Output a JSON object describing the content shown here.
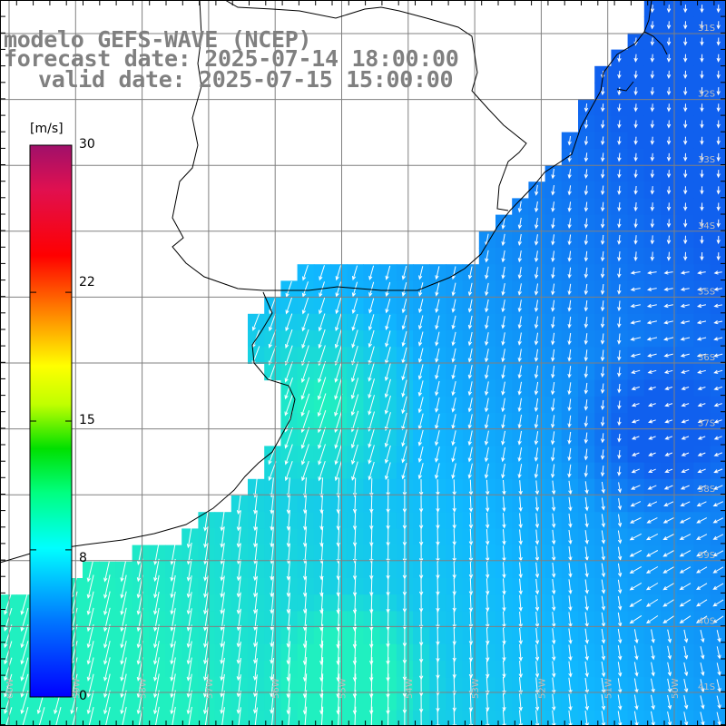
{
  "title": {
    "line1": "modelo GEFS-WAVE (NCEP)",
    "line2": "forecast date: 2025-07-14 18:00:00",
    "line3": "valid date: 2025-07-15 15:00:00"
  },
  "colorbar": {
    "unit": "[m/s]",
    "ticks": [
      "30",
      "22",
      "15",
      "8",
      "0"
    ],
    "tick_values": [
      30,
      22,
      15,
      8,
      0
    ],
    "range": [
      0,
      30
    ],
    "colors": [
      "#0000ff",
      "#0090ff",
      "#00ffff",
      "#00ff60",
      "#00c000",
      "#c0ff00",
      "#ffff00",
      "#ff8000",
      "#ff0000",
      "#d0105a",
      "#a0106a"
    ]
  },
  "grid": {
    "lat_labels": [
      "31S",
      "32S",
      "33S",
      "34S",
      "35S",
      "36S",
      "37S",
      "38S",
      "39S",
      "40S",
      "41S"
    ],
    "lon_labels": [
      "60W",
      "59W",
      "58W",
      "57W",
      "56W",
      "55W",
      "54W",
      "53W",
      "52W",
      "51W",
      "50W"
    ]
  },
  "colors": {
    "ocean_low": "#1060ee",
    "ocean_mid": "#10b8ff",
    "ocean_high": "#20f0c0",
    "land": "#ffffff",
    "coast": "#000000",
    "gridline": "#808080",
    "label": "#c0c0c0"
  }
}
